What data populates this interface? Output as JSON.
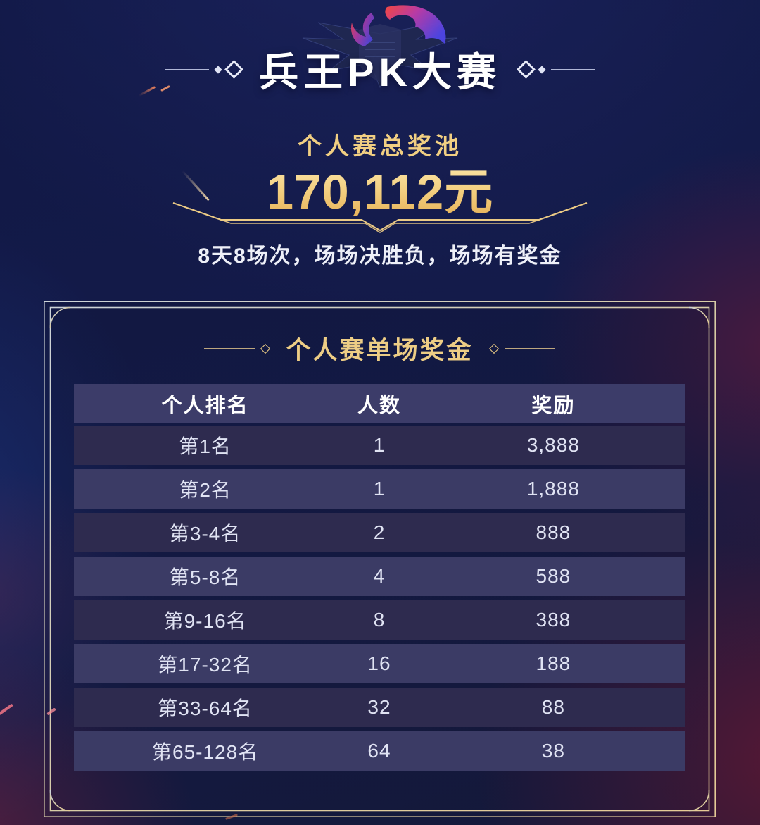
{
  "page": {
    "title": "兵王PK大赛",
    "prize_pool": {
      "label": "个人赛总奖池",
      "amount": "170,112元"
    },
    "subtitle": "8天8场次，场场决胜负，场场有奖金",
    "section": {
      "title": "个人赛单场奖金",
      "table": {
        "headers": [
          "个人排名",
          "人数",
          "奖励"
        ],
        "rows": [
          [
            "第1名",
            "1",
            "3,888"
          ],
          [
            "第2名",
            "1",
            "1,888"
          ],
          [
            "第3-4名",
            "2",
            "888"
          ],
          [
            "第5-8名",
            "4",
            "588"
          ],
          [
            "第9-16名",
            "8",
            "388"
          ],
          [
            "第17-32名",
            "16",
            "188"
          ],
          [
            "第33-64名",
            "32",
            "88"
          ],
          [
            "第65-128名",
            "64",
            "38"
          ]
        ]
      }
    },
    "icons": [
      "dragon-logo-icon",
      "wings-emblem-icon",
      "shield-icon",
      "diamond-ornament-icon"
    ],
    "colors": {
      "gold_text": "#f1cf82",
      "gold_amount_top": "#fdeab0",
      "gold_amount_bottom": "#e6b157",
      "frame_line": "#dcc99e",
      "background_navy": "#141b4a",
      "background_maroon": "#5a1430",
      "header_row_bg": "#3c3c69",
      "row_dark_bg": "#2e2b4f",
      "row_light_bg": "#3b3b65",
      "row_text": "#e0e3f3",
      "title_text": "#ffffff"
    }
  }
}
